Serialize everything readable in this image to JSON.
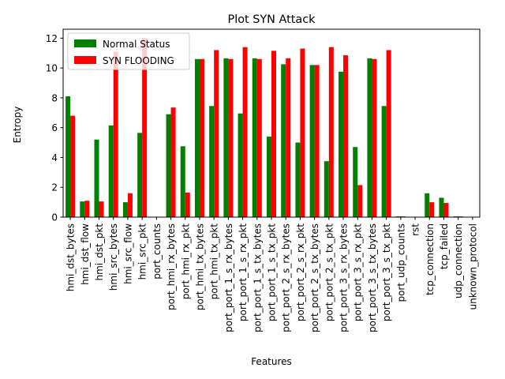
{
  "chart_data": {
    "type": "bar",
    "title": "Plot SYN Attack",
    "xlabel": "Features",
    "ylabel": "Entropy",
    "ylim": [
      0,
      12.6
    ],
    "yticks": [
      0,
      2,
      4,
      6,
      8,
      10,
      12
    ],
    "legend_position": "top-left",
    "grid": false,
    "categories": [
      "hmi_dst_bytes",
      "hmi_dst_flow",
      "hmi_dst_pkt",
      "hmi_src_bytes",
      "hmi_src_flow",
      "hmi_src_pkt",
      "port_counts",
      "port_hmi_rx_bytes",
      "port_hmi_rx_pkt",
      "port_hmi_tx_bytes",
      "port_hmi_tx_pkt",
      "port_port_1_s_rx_bytes",
      "port_port_1_s_rx_pkt",
      "port_port_1_s_tx_bytes",
      "port_port_1_s_tx_pkt",
      "port_port_2_s_rx_bytes",
      "port_port_2_s_rx_pkt",
      "port_port_2_s_tx_bytes",
      "port_port_2_s_tx_pkt",
      "port_port_3_s_rx_bytes",
      "port_port_3_s_rx_pkt",
      "port_port_3_s_tx_bytes",
      "port_port_3_s_tx_pkt",
      "port_udp_counts",
      "rst",
      "tcp_connection",
      "tcp_failed",
      "udp_connection",
      "unknown_protocol"
    ],
    "series": [
      {
        "name": "Normal Status",
        "color": "#008000",
        "values": [
          8.1,
          1.05,
          5.2,
          6.15,
          1.0,
          5.65,
          0,
          6.9,
          4.75,
          10.6,
          7.45,
          10.65,
          6.95,
          10.65,
          5.4,
          10.25,
          5.0,
          10.2,
          3.75,
          9.75,
          4.7,
          10.65,
          7.45,
          0.05,
          0,
          1.6,
          1.3,
          0.05,
          0
        ]
      },
      {
        "name": "SYN FLOODING",
        "color": "#ff0000",
        "values": [
          6.8,
          1.1,
          1.05,
          11.1,
          1.6,
          12.0,
          0,
          7.35,
          1.65,
          10.6,
          11.2,
          10.6,
          11.4,
          10.6,
          11.15,
          10.65,
          11.3,
          10.2,
          11.4,
          10.85,
          2.15,
          10.6,
          11.2,
          0.05,
          0,
          1.0,
          0.95,
          0.05,
          0
        ]
      }
    ]
  }
}
